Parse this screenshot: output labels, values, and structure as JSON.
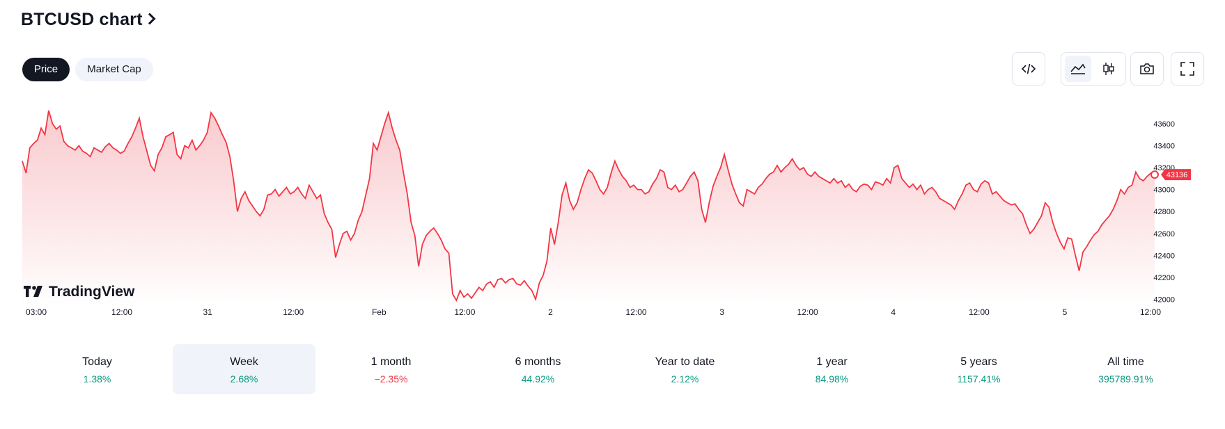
{
  "header": {
    "title": "BTCUSD chart"
  },
  "tabs": [
    {
      "label": "Price",
      "active": true
    },
    {
      "label": "Market Cap",
      "active": false
    }
  ],
  "toolbar": {
    "embed_icon": "code-embed-icon",
    "area_icon": "area-chart-icon",
    "candles_icon": "candlestick-icon",
    "snapshot_icon": "camera-icon",
    "fullscreen_icon": "fullscreen-icon"
  },
  "watermark": {
    "text": "TradingView"
  },
  "chart_data": {
    "type": "area",
    "title": "",
    "xlabel": "",
    "ylabel": "",
    "line_color": "#f23645",
    "fill_top": "#f9c5c9",
    "fill_bottom": "#ffffff",
    "last_value": 43136,
    "last_label": "43136",
    "ylim": [
      41940,
      43840
    ],
    "y_ticks": [
      43600,
      43400,
      43200,
      43000,
      42800,
      42600,
      42400,
      42200,
      42000
    ],
    "x_ticks": [
      "03:00",
      "12:00",
      "31",
      "12:00",
      "Feb",
      "12:00",
      "2",
      "12:00",
      "3",
      "12:00",
      "4",
      "12:00",
      "5",
      "12:00"
    ],
    "series": [
      {
        "values": [
          43260,
          43150,
          43380,
          43420,
          43450,
          43560,
          43500,
          43720,
          43600,
          43550,
          43580,
          43440,
          43400,
          43380,
          43360,
          43400,
          43350,
          43330,
          43300,
          43380,
          43360,
          43340,
          43390,
          43420,
          43380,
          43360,
          43330,
          43350,
          43420,
          43480,
          43560,
          43650,
          43480,
          43350,
          43220,
          43170,
          43320,
          43380,
          43480,
          43500,
          43520,
          43320,
          43280,
          43400,
          43380,
          43450,
          43360,
          43400,
          43450,
          43520,
          43700,
          43650,
          43580,
          43500,
          43430,
          43300,
          43080,
          42800,
          42920,
          42980,
          42900,
          42850,
          42800,
          42760,
          42820,
          42950,
          42960,
          43000,
          42940,
          42980,
          43020,
          42960,
          42980,
          43020,
          42960,
          42920,
          43040,
          42980,
          42920,
          42950,
          42780,
          42700,
          42640,
          42380,
          42500,
          42600,
          42620,
          42540,
          42600,
          42720,
          42800,
          42950,
          43100,
          43420,
          43360,
          43480,
          43600,
          43700,
          43560,
          43450,
          43360,
          43150,
          42960,
          42700,
          42580,
          42300,
          42500,
          42580,
          42620,
          42650,
          42600,
          42540,
          42460,
          42420,
          42050,
          41990,
          42080,
          42020,
          42050,
          42010,
          42060,
          42110,
          42080,
          42140,
          42160,
          42110,
          42180,
          42190,
          42150,
          42180,
          42190,
          42140,
          42130,
          42170,
          42120,
          42080,
          42000,
          42150,
          42220,
          42350,
          42650,
          42500,
          42700,
          42950,
          43060,
          42900,
          42820,
          42880,
          43000,
          43100,
          43180,
          43150,
          43080,
          43000,
          42960,
          43020,
          43150,
          43260,
          43180,
          43120,
          43080,
          43020,
          43040,
          43000,
          43000,
          42960,
          42980,
          43050,
          43100,
          43180,
          43160,
          43020,
          43000,
          43040,
          42980,
          43000,
          43060,
          43120,
          43160,
          43080,
          42820,
          42700,
          42880,
          43030,
          43120,
          43200,
          43320,
          43180,
          43050,
          42960,
          42880,
          42850,
          43000,
          42980,
          42960,
          43020,
          43050,
          43100,
          43140,
          43160,
          43220,
          43160,
          43200,
          43230,
          43280,
          43220,
          43180,
          43200,
          43140,
          43120,
          43160,
          43120,
          43100,
          43080,
          43060,
          43100,
          43060,
          43080,
          43020,
          43050,
          43000,
          42980,
          43030,
          43050,
          43040,
          43000,
          43070,
          43060,
          43040,
          43100,
          43060,
          43200,
          43220,
          43100,
          43060,
          43020,
          43050,
          43000,
          43040,
          42960,
          43000,
          43020,
          42980,
          42920,
          42900,
          42880,
          42860,
          42820,
          42900,
          42960,
          43040,
          43060,
          43000,
          42980,
          43050,
          43080,
          43060,
          42960,
          42980,
          42940,
          42900,
          42880,
          42860,
          42870,
          42820,
          42780,
          42680,
          42600,
          42640,
          42700,
          42760,
          42880,
          42840,
          42700,
          42600,
          42520,
          42460,
          42560,
          42550,
          42400,
          42260,
          42430,
          42480,
          42540,
          42590,
          42620,
          42680,
          42720,
          42760,
          42820,
          42900,
          43000,
          42960,
          43020,
          43040,
          43160,
          43100,
          43080,
          43120,
          43150,
          43136
        ]
      }
    ]
  },
  "periods": [
    {
      "label": "Today",
      "value": "1.38%",
      "sign": "pos",
      "selected": false
    },
    {
      "label": "Week",
      "value": "2.68%",
      "sign": "pos",
      "selected": true
    },
    {
      "label": "1 month",
      "value": "−2.35%",
      "sign": "neg",
      "selected": false
    },
    {
      "label": "6 months",
      "value": "44.92%",
      "sign": "pos",
      "selected": false
    },
    {
      "label": "Year to date",
      "value": "2.12%",
      "sign": "pos",
      "selected": false
    },
    {
      "label": "1 year",
      "value": "84.98%",
      "sign": "pos",
      "selected": false
    },
    {
      "label": "5 years",
      "value": "1157.41%",
      "sign": "pos",
      "selected": false
    },
    {
      "label": "All time",
      "value": "395789.91%",
      "sign": "pos",
      "selected": false
    }
  ]
}
